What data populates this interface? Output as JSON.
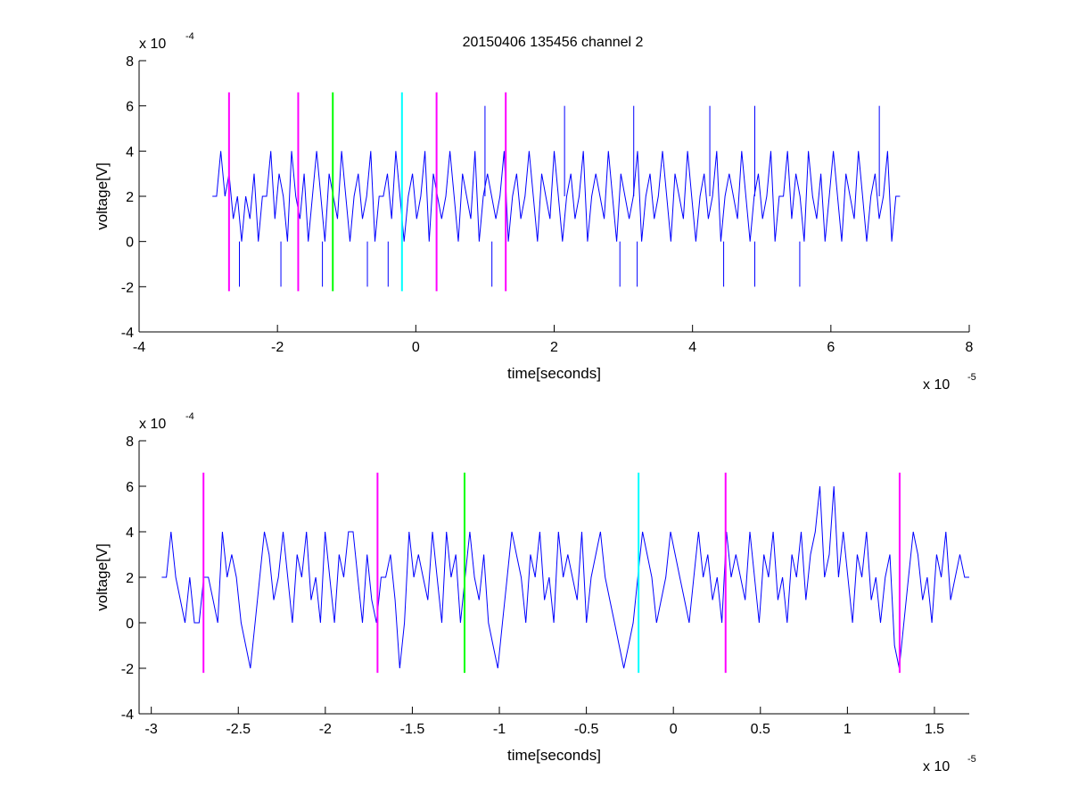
{
  "figure": {
    "title": "20150406 135456 channel 2"
  },
  "chart_data": [
    {
      "type": "line",
      "xlabel": "time[seconds]",
      "ylabel": "voltage[V]",
      "x_multiplier": {
        "base": "x 10",
        "exponent": "-5"
      },
      "y_multiplier": {
        "base": "x 10",
        "exponent": "-4"
      },
      "xlim": [
        -4e-05,
        8e-05
      ],
      "ylim": [
        -0.0004,
        0.0008
      ],
      "x_ticks": [
        -4e-05,
        -2e-05,
        0,
        2e-05,
        4e-05,
        6e-05,
        8e-05
      ],
      "x_tick_labels": [
        "-4",
        "-2",
        "0",
        "2",
        "4",
        "6",
        "8"
      ],
      "y_ticks": [
        -0.0004,
        -0.0002,
        0,
        0.0002,
        0.0004,
        0.0006,
        0.0008
      ],
      "y_tick_labels": [
        "-4",
        "-2",
        "0",
        "2",
        "4",
        "6",
        "8"
      ],
      "grid": false,
      "series": [
        {
          "color": "#0000ff",
          "x_start": -2.94e-05,
          "x_end": 7e-05,
          "values_by_sample_x1e-4": [
            2,
            2,
            4,
            2,
            3,
            1,
            2,
            0,
            2,
            1,
            3,
            0,
            2,
            2,
            4,
            1,
            3,
            2,
            0,
            4,
            2,
            1,
            3,
            0,
            2,
            4,
            2,
            0,
            3,
            2,
            1,
            4,
            2,
            0,
            2,
            3,
            1,
            2,
            4,
            0,
            2,
            2,
            3,
            1,
            4,
            2,
            0,
            2,
            3,
            1,
            2,
            4,
            0,
            3,
            2,
            1,
            2,
            4,
            2,
            0,
            3,
            2,
            1,
            4,
            0,
            2,
            3,
            2,
            1,
            2,
            4,
            0,
            2,
            3,
            1,
            2,
            4,
            2,
            0,
            3,
            2,
            1,
            4,
            2,
            0,
            2,
            3,
            1,
            2,
            4,
            0,
            2,
            3,
            2,
            1,
            4,
            2,
            0,
            3,
            2,
            1,
            2,
            4,
            0,
            2,
            3,
            1,
            2,
            4,
            2,
            0,
            3,
            2,
            1,
            4,
            2,
            0,
            2,
            3,
            1,
            2,
            4,
            0,
            2,
            3,
            2,
            1,
            4,
            2,
            0,
            2,
            3,
            1,
            2,
            4,
            0,
            2,
            2,
            4,
            1,
            3,
            2,
            0,
            4,
            2,
            1,
            3,
            0,
            2,
            4,
            2,
            0,
            3,
            2,
            1,
            4,
            2,
            0,
            2,
            3,
            1,
            2,
            4,
            0,
            2,
            2
          ],
          "spikes_high": [
            {
              "x": 1e-05,
              "y": 0.0006
            },
            {
              "x": 2.15e-05,
              "y": 0.0006
            },
            {
              "x": 3.15e-05,
              "y": 0.0006
            },
            {
              "x": 4.25e-05,
              "y": 0.0006
            },
            {
              "x": 4.9e-05,
              "y": 0.0006
            },
            {
              "x": 6.7e-05,
              "y": 0.0006
            }
          ],
          "spikes_low": [
            {
              "x": -2.55e-05,
              "y": -0.0002
            },
            {
              "x": -1.95e-05,
              "y": -0.0002
            },
            {
              "x": -1.35e-05,
              "y": -0.0002
            },
            {
              "x": -7e-06,
              "y": -0.0002
            },
            {
              "x": -4e-06,
              "y": -0.0002
            },
            {
              "x": 1.1e-05,
              "y": -0.0002
            },
            {
              "x": 2.95e-05,
              "y": -0.0002
            },
            {
              "x": 3.2e-05,
              "y": -0.0002
            },
            {
              "x": 4.45e-05,
              "y": -0.0002
            },
            {
              "x": 4.9e-05,
              "y": -0.0002
            },
            {
              "x": 5.55e-05,
              "y": -0.0002
            }
          ]
        }
      ],
      "markers": [
        {
          "x": -2.7e-05,
          "color": "#ff00ff",
          "y1": -0.00022,
          "y2": 0.00066
        },
        {
          "x": -1.7e-05,
          "color": "#ff00ff",
          "y1": -0.00022,
          "y2": 0.00066
        },
        {
          "x": -1.2e-05,
          "color": "#00ff00",
          "y1": -0.00022,
          "y2": 0.00066
        },
        {
          "x": -2e-06,
          "color": "#00ffff",
          "y1": -0.00022,
          "y2": 0.00066
        },
        {
          "x": 3e-06,
          "color": "#ff00ff",
          "y1": -0.00022,
          "y2": 0.00066
        },
        {
          "x": 1.3e-05,
          "color": "#ff00ff",
          "y1": -0.00022,
          "y2": 0.00066
        }
      ]
    },
    {
      "type": "line",
      "xlabel": "time[seconds]",
      "ylabel": "voltage[V]",
      "x_multiplier": {
        "base": "x 10",
        "exponent": "-5"
      },
      "y_multiplier": {
        "base": "x 10",
        "exponent": "-4"
      },
      "xlim": [
        -3.07e-05,
        1.7e-05
      ],
      "ylim": [
        -0.0004,
        0.0008
      ],
      "x_ticks": [
        -3e-05,
        -2.5e-05,
        -2e-05,
        -1.5e-05,
        -1e-05,
        -5e-06,
        0,
        5e-06,
        1e-05,
        1.5e-05
      ],
      "x_tick_labels": [
        "-3",
        "-2.5",
        "-2",
        "-1.5",
        "-1",
        "-0.5",
        "0",
        "0.5",
        "1",
        "1.5"
      ],
      "y_ticks": [
        -0.0004,
        -0.0002,
        0,
        0.0002,
        0.0004,
        0.0006,
        0.0008
      ],
      "y_tick_labels": [
        "-4",
        "-2",
        "0",
        "2",
        "4",
        "6",
        "8"
      ],
      "grid": false,
      "series": [
        {
          "color": "#0000ff",
          "x_start": -2.94e-05,
          "x_end": 1.7e-05,
          "values_by_sample_x1e-4": [
            2,
            2,
            4,
            2,
            1,
            0,
            2,
            0,
            0,
            2,
            2,
            1,
            0,
            4,
            2,
            3,
            2,
            0,
            -1,
            -2,
            0,
            2,
            4,
            3,
            1,
            2,
            4,
            2,
            0,
            3,
            2,
            4,
            1,
            2,
            0,
            4,
            2,
            0,
            3,
            2,
            4,
            4,
            2,
            0,
            3,
            1,
            0,
            2,
            2,
            3,
            1,
            -2,
            0,
            4,
            2,
            3,
            2,
            1,
            4,
            2,
            0,
            4,
            2,
            3,
            0,
            2,
            4,
            2,
            1,
            3,
            0,
            -1,
            -2,
            0,
            2,
            4,
            3,
            2,
            0,
            3,
            2,
            4,
            1,
            2,
            0,
            4,
            2,
            3,
            2,
            1,
            4,
            0,
            2,
            3,
            4,
            2,
            1,
            0,
            -1,
            -2,
            -1,
            0,
            2,
            4,
            3,
            2,
            0,
            1,
            2,
            4,
            3,
            2,
            1,
            0,
            2,
            4,
            2,
            3,
            1,
            2,
            0,
            4,
            2,
            3,
            2,
            1,
            4,
            2,
            0,
            3,
            2,
            4,
            1,
            2,
            0,
            3,
            2,
            4,
            1,
            3,
            4,
            6,
            2,
            3,
            6,
            2,
            4,
            2,
            0,
            3,
            2,
            4,
            1,
            2,
            0,
            2,
            3,
            -1,
            -2,
            0,
            2,
            4,
            3,
            1,
            2,
            0,
            3,
            2,
            4,
            1,
            2,
            3,
            2,
            2
          ]
        }
      ],
      "markers": [
        {
          "x": -2.7e-05,
          "color": "#ff00ff",
          "y1": -0.00022,
          "y2": 0.00066
        },
        {
          "x": -1.7e-05,
          "color": "#ff00ff",
          "y1": -0.00022,
          "y2": 0.00066
        },
        {
          "x": -1.2e-05,
          "color": "#00ff00",
          "y1": -0.00022,
          "y2": 0.00066
        },
        {
          "x": -2e-06,
          "color": "#00ffff",
          "y1": -0.00022,
          "y2": 0.00066
        },
        {
          "x": 3e-06,
          "color": "#ff00ff",
          "y1": -0.00022,
          "y2": 0.00066
        },
        {
          "x": 1.3e-05,
          "color": "#ff00ff",
          "y1": -0.00022,
          "y2": 0.00066
        }
      ]
    }
  ]
}
